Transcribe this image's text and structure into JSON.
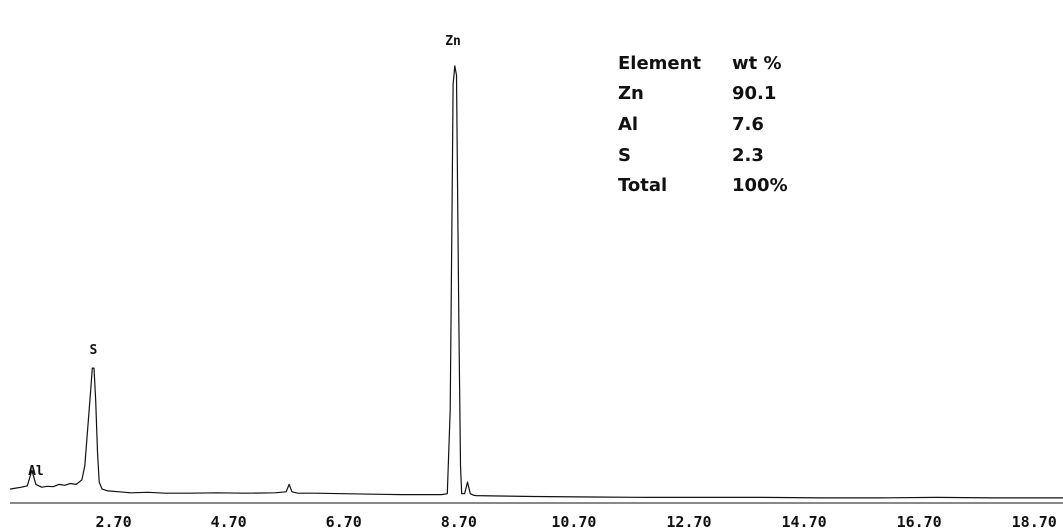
{
  "chart_data": {
    "type": "line",
    "title": "",
    "xlabel": "",
    "ylabel": "",
    "xlim": [
      0.9,
      19.2
    ],
    "ylim": [
      0,
      1.0
    ],
    "x_ticks": [
      "2.70",
      "4.70",
      "6.70",
      "8.70",
      "10.70",
      "12.70",
      "14.70",
      "16.70",
      "18.70"
    ],
    "grid": false,
    "line_color": "#111111",
    "series": [
      {
        "name": "",
        "x": [
          0.9,
          1.0,
          1.1,
          1.2,
          1.28,
          1.35,
          1.45,
          1.55,
          1.65,
          1.75,
          1.85,
          1.95,
          2.05,
          2.15,
          2.2,
          2.25,
          2.3,
          2.33,
          2.36,
          2.39,
          2.42,
          2.45,
          2.5,
          2.6,
          2.8,
          3.0,
          3.3,
          3.6,
          4.0,
          4.5,
          5.0,
          5.5,
          5.7,
          5.75,
          5.8,
          5.9,
          6.2,
          6.7,
          7.2,
          7.7,
          8.2,
          8.4,
          8.5,
          8.55,
          8.58,
          8.6,
          8.63,
          8.66,
          8.7,
          8.73,
          8.75,
          8.8,
          8.85,
          8.9,
          8.95,
          9.0,
          9.4,
          10.0,
          11.0,
          12.0,
          13.0,
          14.0,
          15.0,
          16.0,
          17.0,
          18.0,
          19.2
        ],
        "y": [
          0.03,
          0.032,
          0.034,
          0.037,
          0.07,
          0.04,
          0.034,
          0.036,
          0.035,
          0.04,
          0.038,
          0.042,
          0.04,
          0.05,
          0.08,
          0.16,
          0.24,
          0.29,
          0.29,
          0.22,
          0.11,
          0.045,
          0.03,
          0.026,
          0.024,
          0.022,
          0.023,
          0.021,
          0.021,
          0.022,
          0.021,
          0.022,
          0.024,
          0.04,
          0.024,
          0.021,
          0.021,
          0.02,
          0.019,
          0.018,
          0.018,
          0.018,
          0.02,
          0.2,
          0.6,
          0.9,
          0.94,
          0.92,
          0.4,
          0.08,
          0.02,
          0.02,
          0.045,
          0.02,
          0.017,
          0.016,
          0.015,
          0.014,
          0.013,
          0.012,
          0.012,
          0.012,
          0.011,
          0.011,
          0.012,
          0.011,
          0.011
        ]
      }
    ],
    "annotations": [
      {
        "text": "Al",
        "x": 1.35,
        "y": 0.06
      },
      {
        "text": "S",
        "x": 2.35,
        "y": 0.32
      },
      {
        "text": "Zn",
        "x": 8.6,
        "y": 0.985
      }
    ]
  },
  "composition_table": {
    "headers": [
      "Element",
      "wt %"
    ],
    "rows": [
      [
        "Zn",
        "90.1"
      ],
      [
        "Al",
        "7.6"
      ],
      [
        "S",
        "2.3"
      ],
      [
        "Total",
        "100%"
      ]
    ]
  }
}
